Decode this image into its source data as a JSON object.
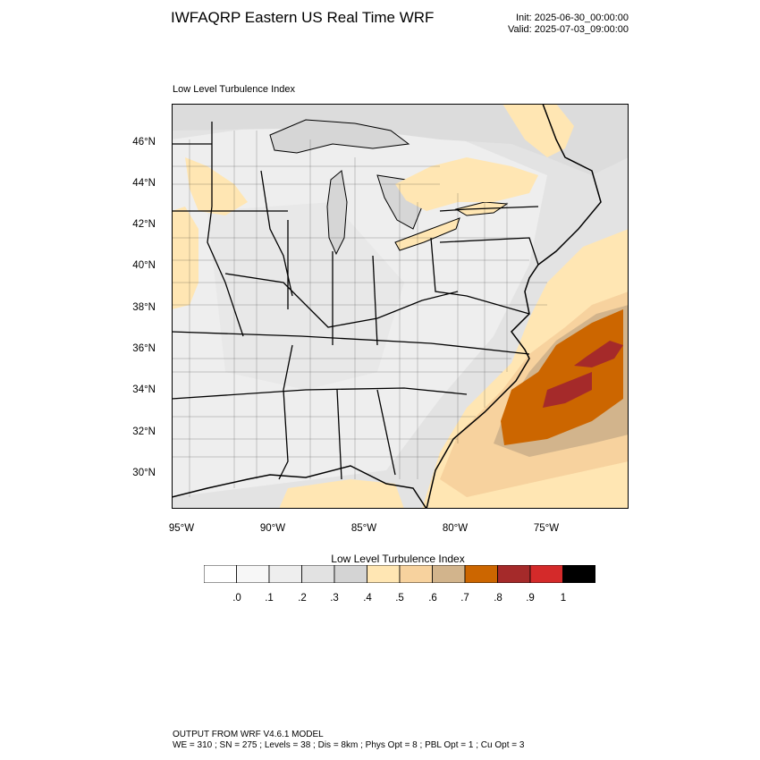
{
  "header": {
    "title": "IWFAQRP Eastern US Real Time WRF",
    "init": "Init: 2025-06-30_00:00:00",
    "valid": "Valid: 2025-07-03_09:00:00"
  },
  "map": {
    "subtitle": "Low Level Turbulence Index",
    "lat_labels": [
      "46°N",
      "44°N",
      "42°N",
      "40°N",
      "38°N",
      "36°N",
      "34°N",
      "32°N",
      "30°N"
    ],
    "lon_labels": [
      "95°W",
      "90°W",
      "85°W",
      "80°W",
      "75°W"
    ]
  },
  "colorbar": {
    "title": "Low Level Turbulence Index",
    "labels": [
      ".0",
      ".1",
      ".2",
      ".3",
      ".4",
      ".5",
      ".6",
      ".7",
      ".8",
      ".9",
      "1"
    ],
    "colors": [
      "#ffffff",
      "#f7f7f7",
      "#eeeeee",
      "#e2e2e2",
      "#d4d4d4",
      "#ffe6b3",
      "#f7d29e",
      "#d2b48c",
      "#cc6600",
      "#a52a2a",
      "#d42a2a",
      "#000000"
    ]
  },
  "footer": {
    "line1": "OUTPUT FROM WRF V4.6.1 MODEL",
    "line2": "WE = 310 ; SN = 275 ; Levels = 38 ; Dis = 8km ; Phys Opt = 8 ; PBL Opt = 1 ; Cu Opt = 3"
  }
}
